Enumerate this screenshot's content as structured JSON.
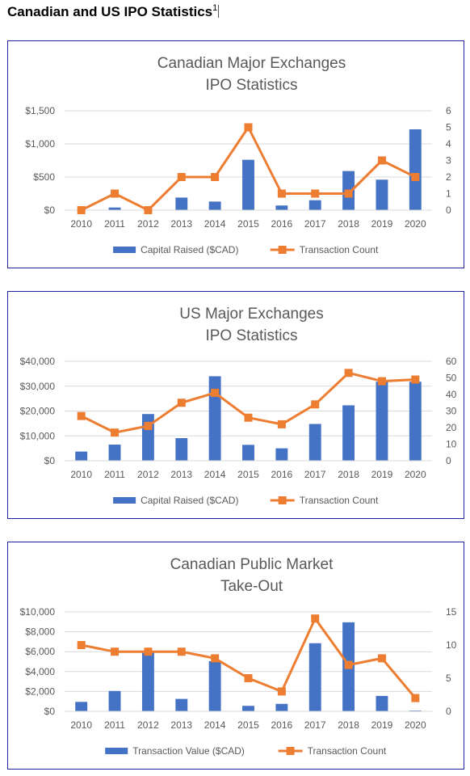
{
  "page": {
    "heading": "Canadian and US IPO Statistics",
    "footnote_mark": "1"
  },
  "chart_data": [
    {
      "type": "bar",
      "title_lines": [
        "Canadian Major Exchanges",
        "IPO Statistics"
      ],
      "categories": [
        "2010",
        "2011",
        "2012",
        "2013",
        "2014",
        "2015",
        "2016",
        "2017",
        "2018",
        "2019",
        "2020"
      ],
      "y_left": {
        "range": [
          0,
          1500
        ],
        "ticks": [
          0,
          500,
          1000,
          1500
        ],
        "tick_labels": [
          "$0",
          "$500",
          "$1,000",
          "$1,500"
        ]
      },
      "y_right": {
        "range": [
          0,
          6
        ],
        "ticks": [
          0,
          1,
          2,
          3,
          4,
          5,
          6
        ],
        "tick_labels": [
          "0",
          "1",
          "2",
          "3",
          "4",
          "5",
          "6"
        ]
      },
      "grid": true,
      "legend_position": "bottom",
      "series": [
        {
          "name": "Capital Raised ($CAD)",
          "kind": "bar",
          "axis": "left",
          "color": "#4472c4",
          "values": [
            0,
            40,
            0,
            190,
            130,
            760,
            70,
            150,
            590,
            460,
            1220
          ]
        },
        {
          "name": "Transaction Count",
          "kind": "line",
          "axis": "right",
          "color": "#ed7d31",
          "values": [
            0,
            1,
            0,
            2,
            2,
            5,
            1,
            1,
            1,
            3,
            2
          ]
        }
      ]
    },
    {
      "type": "bar",
      "title_lines": [
        "US Major Exchanges",
        "IPO Statistics"
      ],
      "categories": [
        "2010",
        "2011",
        "2012",
        "2013",
        "2014",
        "2015",
        "2016",
        "2017",
        "2018",
        "2019",
        "2020"
      ],
      "y_left": {
        "range": [
          0,
          40000
        ],
        "ticks": [
          0,
          10000,
          20000,
          30000,
          40000
        ],
        "tick_labels": [
          "$0",
          "$10,000",
          "$20,000",
          "$30,000",
          "$40,000"
        ]
      },
      "y_right": {
        "range": [
          0,
          60
        ],
        "ticks": [
          0,
          10,
          20,
          30,
          40,
          50,
          60
        ],
        "tick_labels": [
          "0",
          "10",
          "20",
          "30",
          "40",
          "50",
          "60"
        ]
      },
      "grid": true,
      "legend_position": "bottom",
      "series": [
        {
          "name": "Capital Raised ($CAD)",
          "kind": "bar",
          "axis": "left",
          "color": "#4472c4",
          "values": [
            3700,
            6500,
            18800,
            9100,
            34000,
            6400,
            5000,
            14800,
            22300,
            31800,
            31800
          ]
        },
        {
          "name": "Transaction Count",
          "kind": "line",
          "axis": "right",
          "color": "#ed7d31",
          "values": [
            27,
            17,
            21,
            35,
            41,
            26,
            22,
            34,
            53,
            48,
            49
          ]
        }
      ]
    },
    {
      "type": "bar",
      "title_lines": [
        "Canadian Public Market",
        "Take-Out"
      ],
      "categories": [
        "2010",
        "2011",
        "2012",
        "2013",
        "2014",
        "2015",
        "2016",
        "2017",
        "2018",
        "2019",
        "2020"
      ],
      "y_left": {
        "range": [
          0,
          10000
        ],
        "ticks": [
          0,
          2000,
          4000,
          6000,
          8000,
          10000
        ],
        "tick_labels": [
          "$0",
          "$2,000",
          "$4,000",
          "$6,000",
          "$8,000",
          "$10,000"
        ]
      },
      "y_right": {
        "range": [
          0,
          15
        ],
        "ticks": [
          0,
          5,
          10,
          15
        ],
        "tick_labels": [
          "0",
          "5",
          "10",
          "15"
        ]
      },
      "grid": true,
      "legend_position": "bottom",
      "series": [
        {
          "name": "Transaction Value ($CAD)",
          "kind": "bar",
          "axis": "left",
          "color": "#4472c4",
          "values": [
            950,
            2050,
            5950,
            1250,
            5050,
            550,
            750,
            6850,
            8950,
            1550,
            80
          ]
        },
        {
          "name": "Transaction Count",
          "kind": "line",
          "axis": "right",
          "color": "#ed7d31",
          "values": [
            10,
            9,
            9,
            9,
            8,
            5,
            3,
            14,
            7,
            8,
            2
          ]
        }
      ]
    }
  ]
}
